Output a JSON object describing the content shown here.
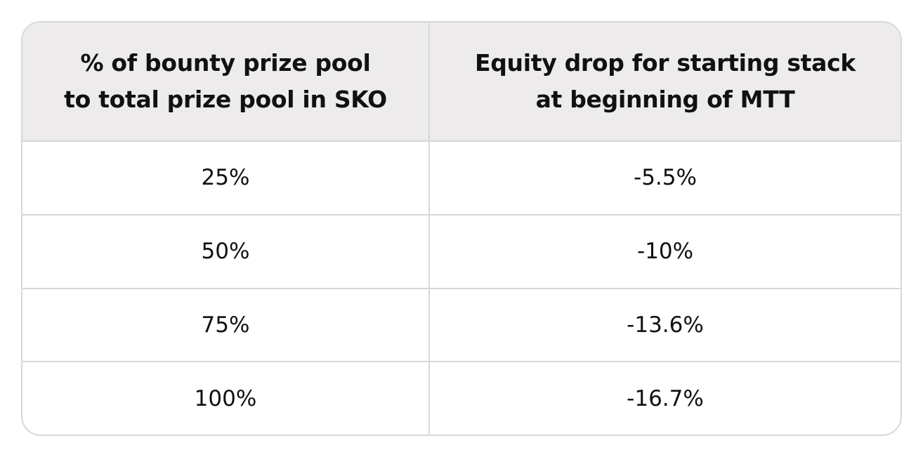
{
  "table": {
    "header": [
      [
        "% of bounty prize pool",
        "to total prize pool in SKO"
      ],
      [
        "Equity drop for starting stack",
        "at beginning of MTT"
      ]
    ],
    "rows": [
      [
        "25%",
        "-5.5%"
      ],
      [
        "50%",
        "-10%"
      ],
      [
        "75%",
        "-13.6%"
      ],
      [
        "100%",
        "-16.7%"
      ]
    ]
  }
}
